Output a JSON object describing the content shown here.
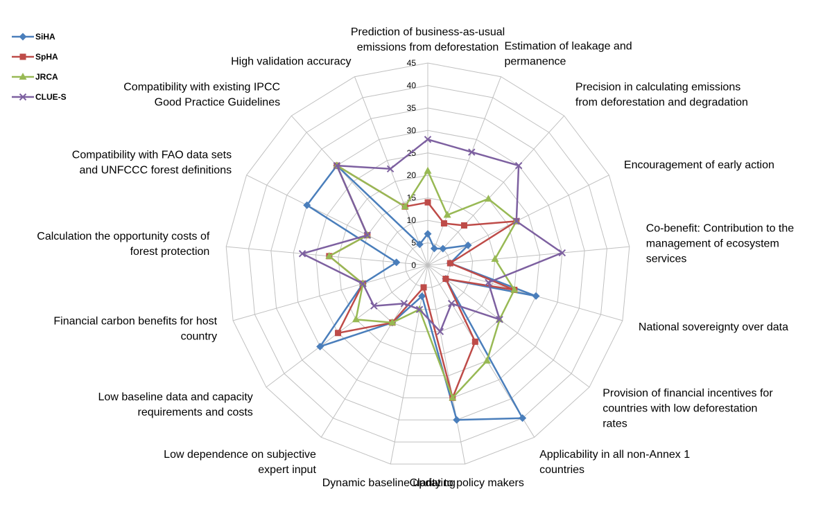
{
  "chart_data": {
    "type": "radar",
    "r_range": [
      0,
      45
    ],
    "r_ticks": [
      "0",
      "5",
      "10",
      "15",
      "20",
      "25",
      "30",
      "35",
      "40",
      "45"
    ],
    "grid": true,
    "legend_position": "top-left",
    "categories": [
      [
        "Prediction of business-as-usual",
        "emissions from deforestation"
      ],
      [
        "Estimation of leakage and",
        "permanence"
      ],
      [
        "Precision in calculating emissions",
        "from deforestation and degradation"
      ],
      [
        "Encouragement of early action"
      ],
      [
        "Co-benefit: Contribution to the",
        "management of ecosystem",
        "services"
      ],
      [
        "National sovereignty over data"
      ],
      [
        "Provision of financial incentives for",
        "countries with low deforestation",
        "rates"
      ],
      [
        "Applicability in all non-Annex 1",
        "countries"
      ],
      [
        "Clarity to policy makers"
      ],
      [
        "Dynamic baseline updating"
      ],
      [
        "Low dependence on subjective",
        "expert input"
      ],
      [
        "Low baseline data and capacity",
        "requirements and costs"
      ],
      [
        "Financial carbon benefits for host",
        "country"
      ],
      [
        "Calculation the opportunity costs of",
        "forest protection"
      ],
      [
        "Compatibility with FAO data sets",
        "and UNFCCC  forest definitions"
      ],
      [
        "Compatibility with existing IPCC",
        "Good Practice Guidelines"
      ],
      [
        "High validation accuracy"
      ]
    ],
    "series": [
      {
        "name": "SiHA",
        "color": "#4a7ebb",
        "marker": "diamond",
        "values": [
          7,
          4,
          5,
          10,
          5,
          25,
          5,
          40,
          35,
          7,
          15,
          30,
          15,
          7,
          30,
          30,
          5
        ]
      },
      {
        "name": "SpHA",
        "color": "#be4b48",
        "marker": "square",
        "values": [
          14,
          10,
          12,
          22,
          5,
          20,
          5,
          20,
          30,
          5,
          15,
          25,
          15,
          22,
          15,
          30,
          14
        ]
      },
      {
        "name": "JRCA",
        "color": "#98b954",
        "marker": "triangle",
        "values": [
          21,
          12,
          20,
          22,
          15,
          20,
          20,
          25,
          30,
          10,
          15,
          20,
          15,
          22,
          15,
          30,
          14
        ]
      },
      {
        "name": "CLUE-S",
        "color": "#7d60a0",
        "marker": "x",
        "values": [
          28,
          27,
          30,
          22,
          30,
          14,
          20,
          10,
          15,
          10,
          10,
          15,
          15,
          28,
          15,
          30,
          23
        ]
      }
    ]
  }
}
